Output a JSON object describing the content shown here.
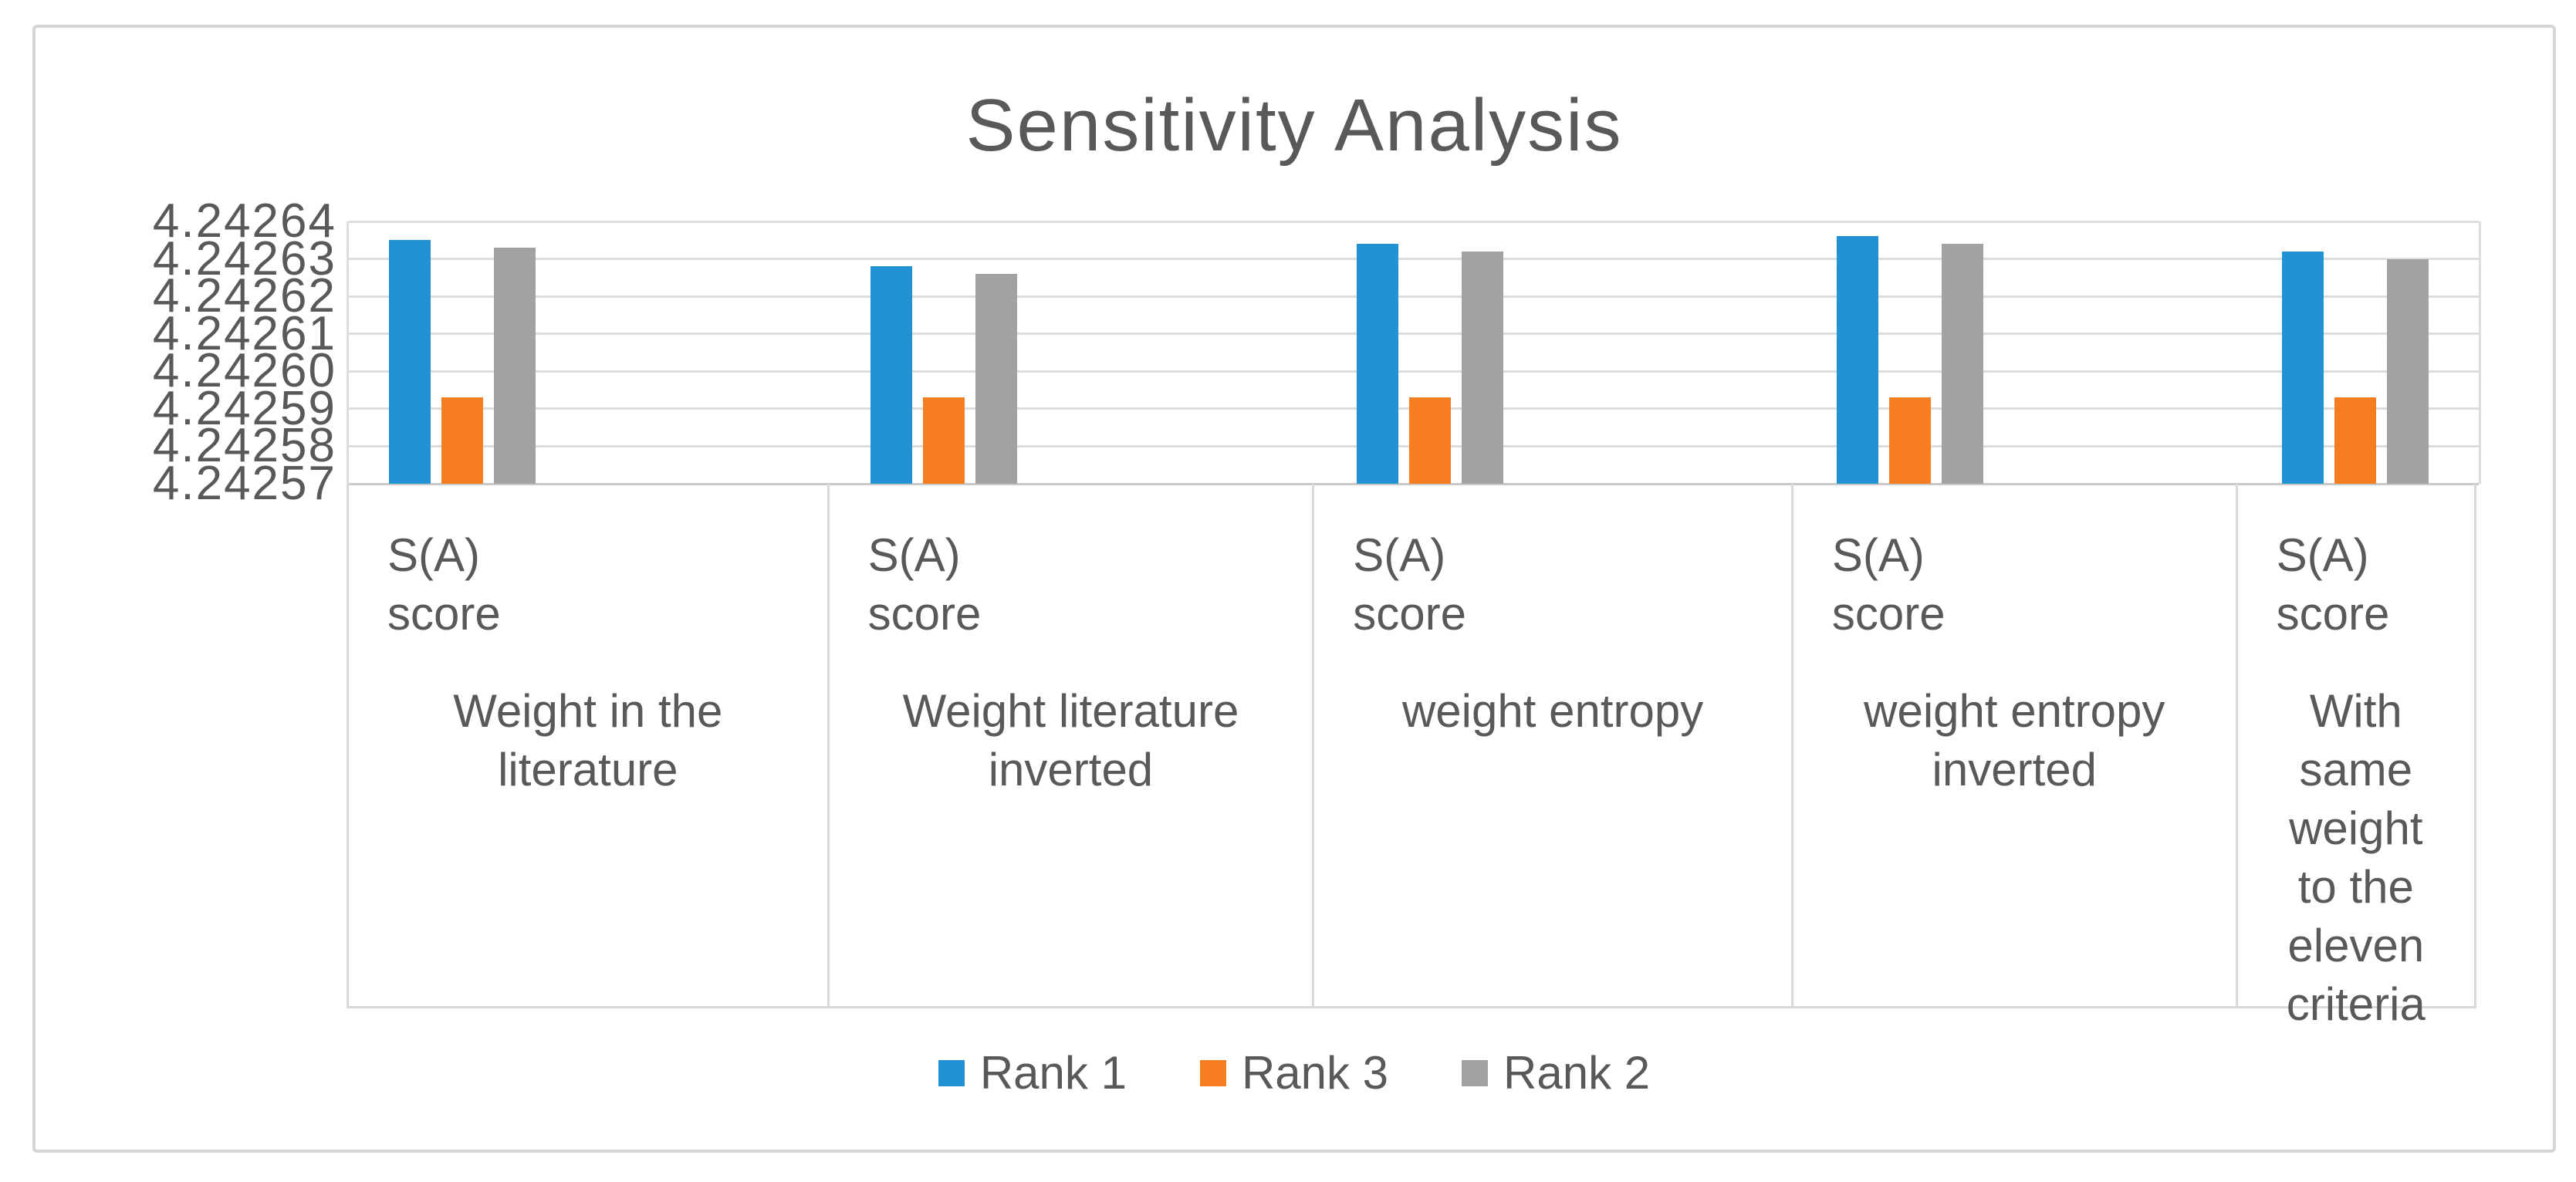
{
  "chart": {
    "title": "Sensitivity Analysis"
  },
  "chart_data": {
    "type": "bar",
    "title": "Sensitivity Analysis",
    "categories": [
      "Weight  in the literature",
      "Weight literature inverted",
      "weight entropy",
      "weight entropy inverted",
      "With same weight to the eleven criteria"
    ],
    "category_sublabel": "S(A) score",
    "series": [
      {
        "name": "Rank 1",
        "color": "#2292d4",
        "values": [
          4.242635,
          4.242628,
          4.242634,
          4.242636,
          4.242632
        ]
      },
      {
        "name": "Rank 3",
        "color": "#f67d20",
        "values": [
          4.242593,
          4.242593,
          4.242593,
          4.242593,
          4.242593
        ]
      },
      {
        "name": "Rank 2",
        "color": "#a2a2a2",
        "values": [
          4.242633,
          4.242626,
          4.242632,
          4.242634,
          4.24263
        ]
      }
    ],
    "ylim": [
      4.24257,
      4.24264
    ],
    "ytick_step": 1e-05,
    "yticks": [
      "4.24264",
      "4.24263",
      "4.24262",
      "4.24261",
      "4.24260",
      "4.24259",
      "4.24258",
      "4.24257"
    ],
    "grid": true,
    "legend_position": "bottom",
    "legend_order": [
      "Rank 1",
      "Rank 3",
      "Rank 2"
    ]
  },
  "axis_cells": [
    {
      "sublabel_lines": [
        "S(A)",
        "score"
      ],
      "label_lines": [
        "Weight  in the",
        "literature"
      ]
    },
    {
      "sublabel_lines": [
        "S(A)",
        "score"
      ],
      "label_lines": [
        "Weight literature",
        "inverted"
      ]
    },
    {
      "sublabel_lines": [
        "S(A)",
        "score"
      ],
      "label_lines": [
        "weight entropy"
      ]
    },
    {
      "sublabel_lines": [
        "S(A)",
        "score"
      ],
      "label_lines": [
        "weight entropy",
        "inverted"
      ]
    },
    {
      "sublabel_lines": [
        "S(A)",
        "score"
      ],
      "label_lines": [
        "With",
        "same",
        "weight",
        "to the",
        "eleven",
        "criteria"
      ]
    }
  ],
  "colors": {
    "text": "#595959",
    "gridline": "#dcdcdc",
    "axis_border": "#d9d9d9",
    "figure_border": "#d6d6d6",
    "background": "#ffffff"
  }
}
